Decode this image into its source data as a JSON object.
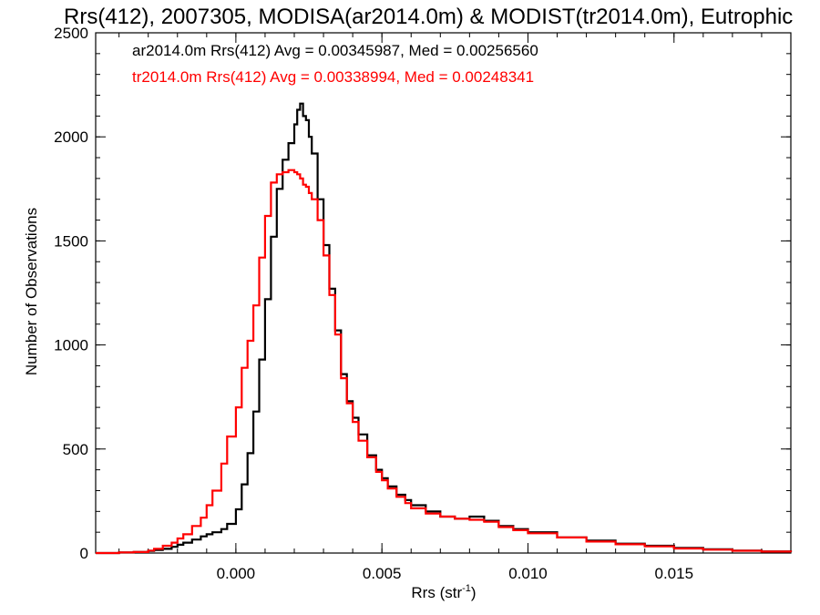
{
  "chart_data": {
    "type": "line",
    "title": "Rrs(412), 2007305, MODISA(ar2014.0m) & MODIST(tr2014.0m), Eutrophic",
    "xlabel": "Rrs (str",
    "xlabel_sup": "-1",
    "xlabel_close": ")",
    "ylabel": "Number of Observations",
    "xlim": [
      -0.0048,
      0.019
    ],
    "ylim": [
      0,
      2500
    ],
    "xticks": [
      0.0,
      0.005,
      0.01,
      0.015
    ],
    "xtick_labels": [
      "0.000",
      "0.005",
      "0.010",
      "0.015"
    ],
    "yticks": [
      0,
      500,
      1000,
      1500,
      2000,
      2500
    ],
    "ytick_labels": [
      "0",
      "500",
      "1000",
      "1500",
      "2000",
      "2500"
    ],
    "grid": false,
    "legend_position": "top-left",
    "series": [
      {
        "name": "ar2014.0m Rrs(412) Avg = 0.00345987, Med = 0.00256560",
        "color": "#000000",
        "x": [
          -0.0048,
          -0.004,
          -0.0035,
          -0.003,
          -0.0028,
          -0.0025,
          -0.0022,
          -0.002,
          -0.0018,
          -0.0015,
          -0.0012,
          -0.001,
          -0.0008,
          -0.0005,
          -0.0003,
          0.0,
          0.0002,
          0.0004,
          0.0006,
          0.0008,
          0.001,
          0.0012,
          0.0014,
          0.0016,
          0.0018,
          0.002,
          0.0021,
          0.0022,
          0.0023,
          0.0024,
          0.0025,
          0.0026,
          0.0028,
          0.003,
          0.0032,
          0.0034,
          0.0036,
          0.0038,
          0.004,
          0.0042,
          0.0045,
          0.0048,
          0.005,
          0.0052,
          0.0055,
          0.0058,
          0.006,
          0.0065,
          0.007,
          0.0075,
          0.008,
          0.0085,
          0.009,
          0.0095,
          0.01,
          0.011,
          0.012,
          0.013,
          0.014,
          0.015,
          0.016,
          0.017,
          0.018,
          0.019
        ],
        "y": [
          0,
          3,
          5,
          10,
          15,
          20,
          30,
          40,
          50,
          65,
          80,
          90,
          100,
          115,
          140,
          210,
          330,
          480,
          680,
          930,
          1220,
          1520,
          1750,
          1890,
          1970,
          2060,
          2130,
          2160,
          2100,
          2080,
          2000,
          1920,
          1700,
          1480,
          1270,
          1070,
          860,
          730,
          650,
          570,
          470,
          400,
          360,
          320,
          280,
          255,
          230,
          200,
          175,
          165,
          175,
          155,
          130,
          115,
          100,
          75,
          60,
          45,
          35,
          25,
          18,
          12,
          8,
          5
        ]
      },
      {
        "name": "tr2014.0m Rrs(412) Avg = 0.00338994, Med = 0.00248341",
        "color": "#ff0000",
        "x": [
          -0.0048,
          -0.004,
          -0.0035,
          -0.003,
          -0.0028,
          -0.0025,
          -0.0022,
          -0.002,
          -0.0018,
          -0.0015,
          -0.0012,
          -0.001,
          -0.0008,
          -0.0005,
          -0.0003,
          0.0,
          0.0002,
          0.0004,
          0.0006,
          0.0008,
          0.001,
          0.0012,
          0.0014,
          0.0016,
          0.0018,
          0.002,
          0.0021,
          0.0022,
          0.0023,
          0.0024,
          0.0025,
          0.0026,
          0.0028,
          0.003,
          0.0032,
          0.0034,
          0.0036,
          0.0038,
          0.004,
          0.0042,
          0.0045,
          0.0048,
          0.005,
          0.0052,
          0.0055,
          0.0058,
          0.006,
          0.0065,
          0.007,
          0.0075,
          0.008,
          0.0085,
          0.009,
          0.0095,
          0.01,
          0.011,
          0.012,
          0.013,
          0.014,
          0.015,
          0.016,
          0.017,
          0.018,
          0.019
        ],
        "y": [
          0,
          3,
          5,
          12,
          20,
          35,
          50,
          70,
          90,
          130,
          170,
          230,
          300,
          430,
          560,
          700,
          890,
          1020,
          1190,
          1420,
          1620,
          1780,
          1820,
          1830,
          1840,
          1830,
          1820,
          1800,
          1770,
          1760,
          1730,
          1700,
          1600,
          1430,
          1240,
          1050,
          840,
          720,
          630,
          540,
          460,
          390,
          350,
          310,
          270,
          240,
          215,
          190,
          175,
          165,
          160,
          150,
          125,
          110,
          95,
          75,
          55,
          42,
          32,
          22,
          16,
          11,
          7,
          5
        ]
      }
    ]
  }
}
